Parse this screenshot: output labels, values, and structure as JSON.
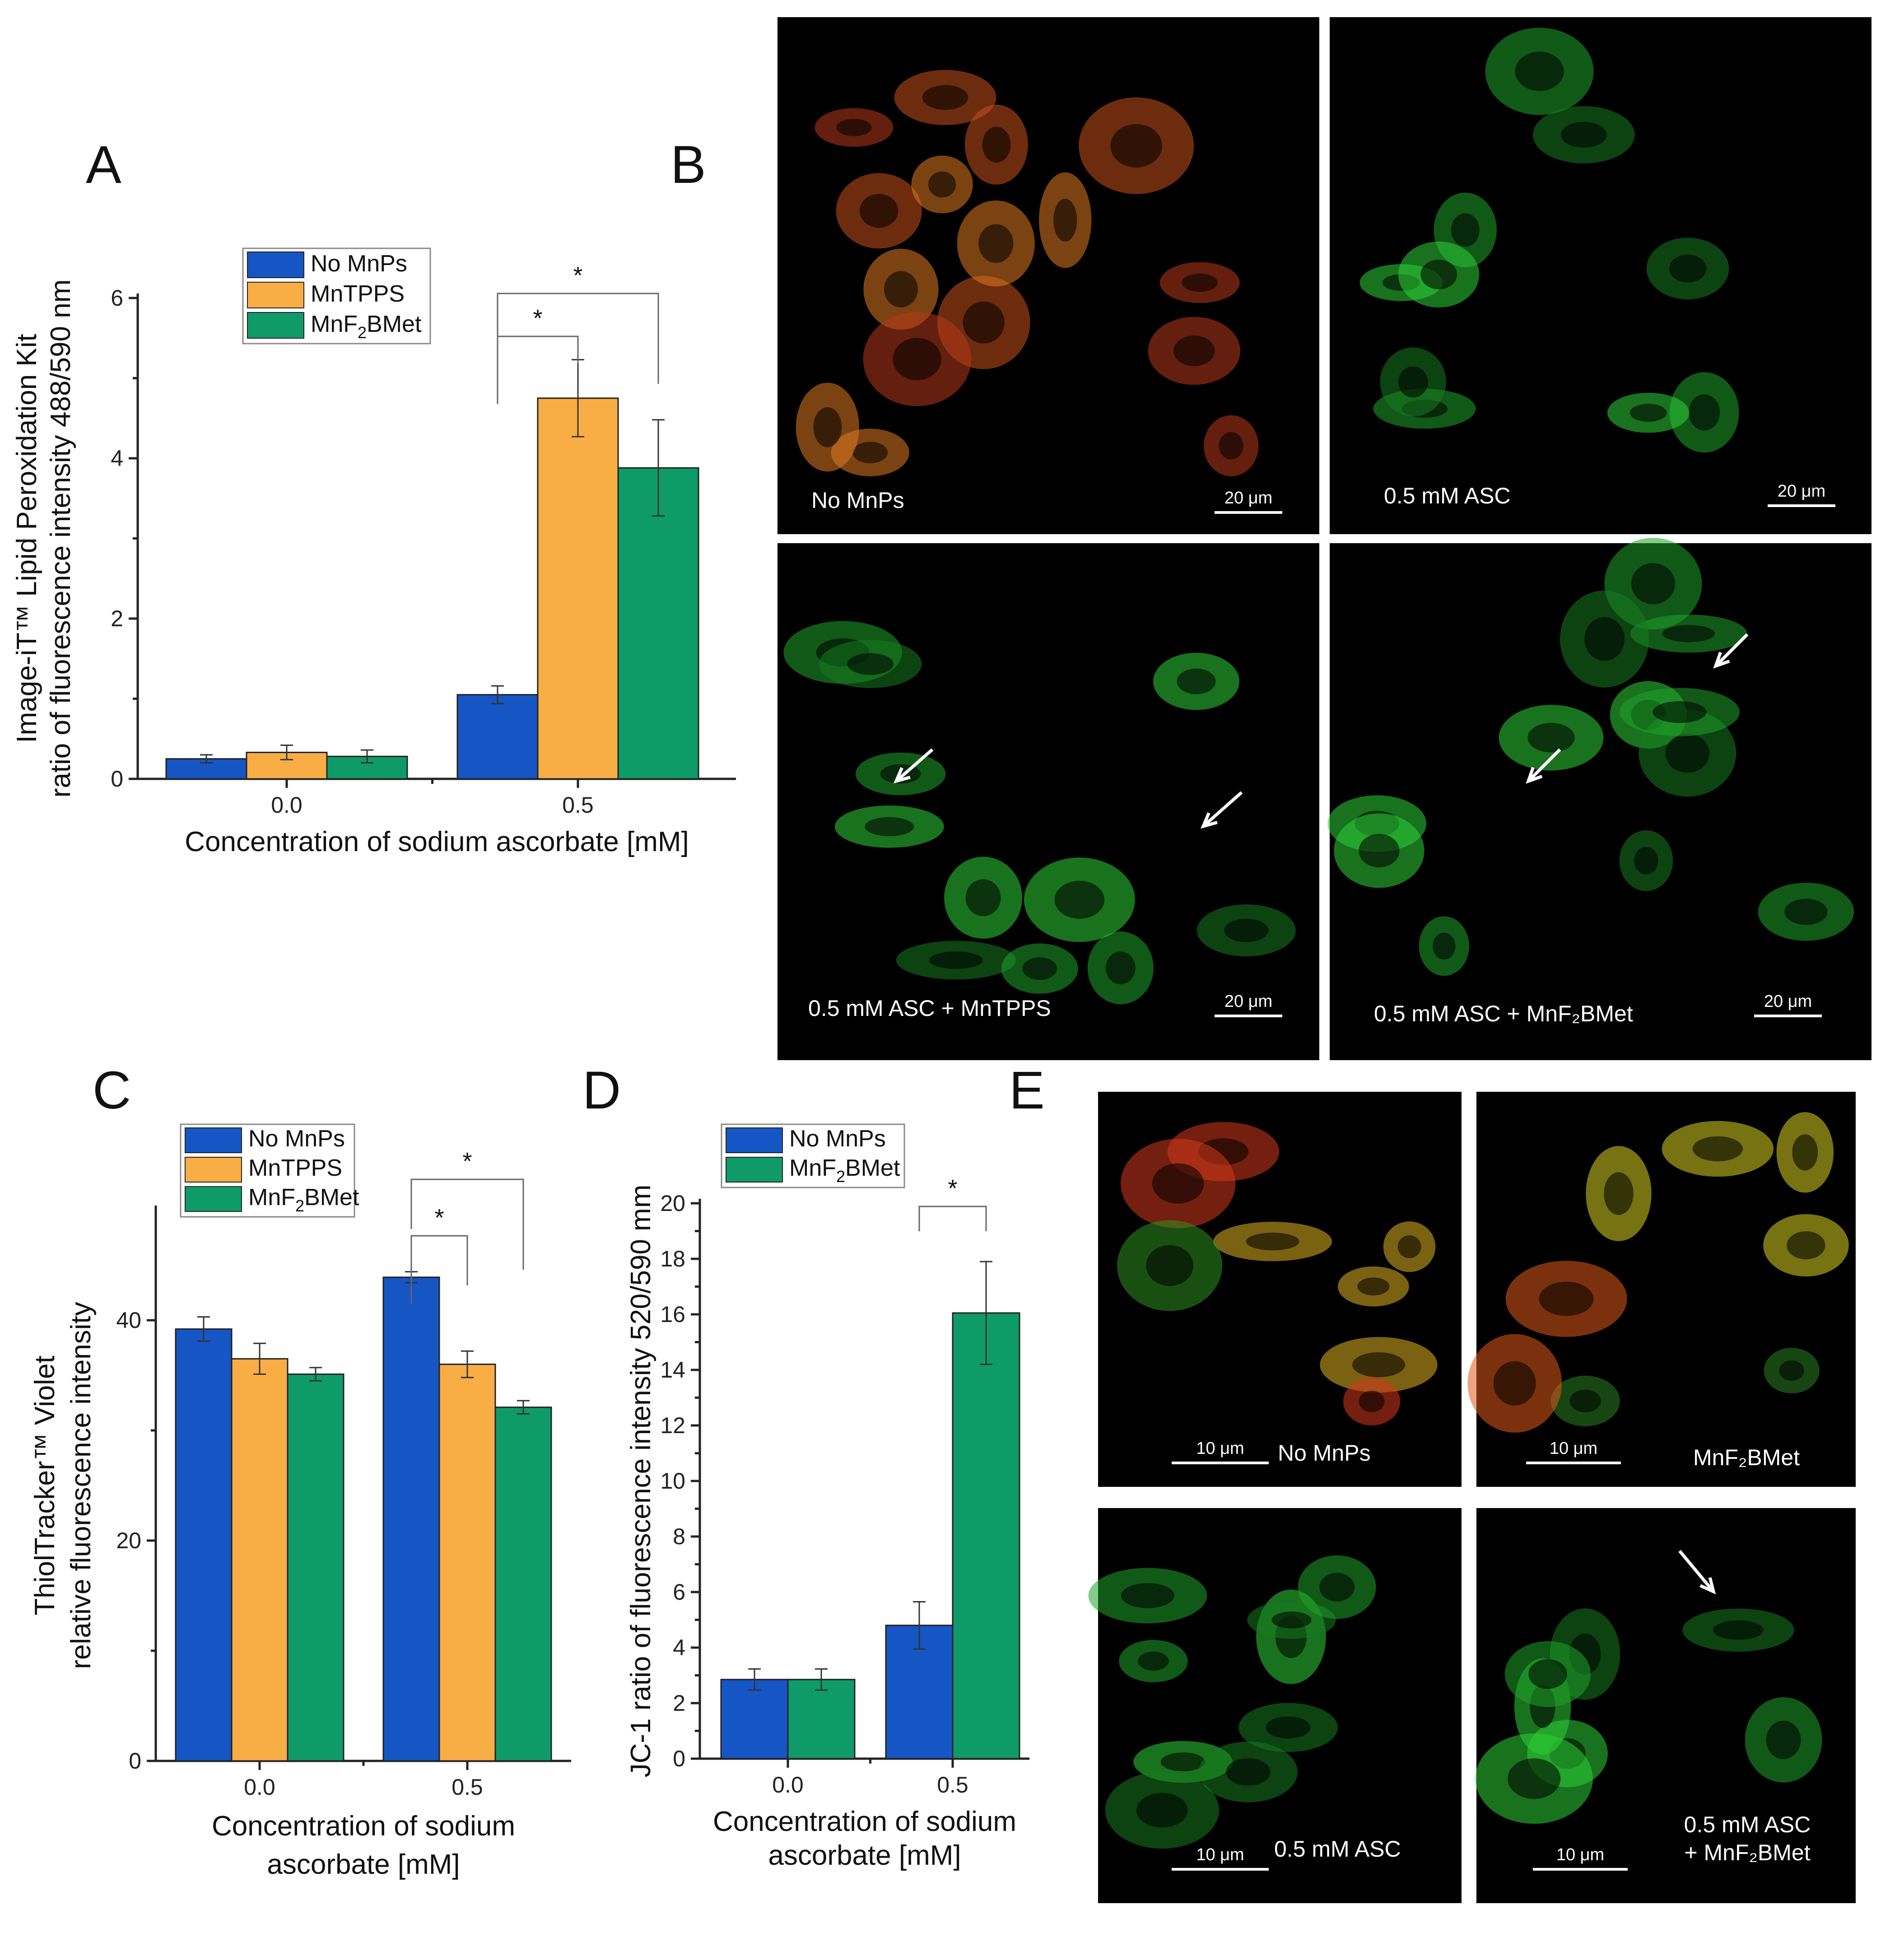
{
  "colors": {
    "blue": "#1655c4",
    "orange": "#f9ae45",
    "green": "#0f9a6a",
    "image_bg": "#000000"
  },
  "panel_letters": [
    "A",
    "B",
    "C",
    "D",
    "E"
  ],
  "chart_data": [
    {
      "id": "A",
      "type": "bar",
      "ylabel_lines": [
        "Image-iT™ Lipid Peroxidation Kit",
        "ratio of fluorescence intensity 488/590 nm"
      ],
      "xlabel_lines": [
        "Concentration of sodium ascorbate [mM]"
      ],
      "categories": [
        "0.0",
        "0.5"
      ],
      "ylim": [
        0,
        6
      ],
      "yticks": [
        0,
        2,
        4,
        6
      ],
      "series": [
        {
          "name": "No MnPs",
          "color": "#1655c4",
          "values": [
            0.25,
            1.05
          ],
          "errors": [
            0.05,
            0.11
          ]
        },
        {
          "name": "MnTPPS",
          "color": "#f9ae45",
          "values": [
            0.33,
            4.75
          ],
          "errors": [
            0.09,
            0.48
          ]
        },
        {
          "name": "MnF₂BMet",
          "color": "#0f9a6a",
          "values": [
            0.28,
            3.88
          ],
          "errors": [
            0.08,
            0.6
          ]
        }
      ],
      "significance": [
        {
          "group": 1,
          "from": 0,
          "to": 1,
          "label": "*"
        },
        {
          "group": 1,
          "from": 0,
          "to": 2,
          "label": "*"
        }
      ]
    },
    {
      "id": "C",
      "type": "bar",
      "ylabel_lines": [
        "ThiolTracker™ Violet",
        "relative fluorescence intensity"
      ],
      "xlabel_lines": [
        "Concentration of sodium",
        "ascorbate [mM]"
      ],
      "categories": [
        "0.0",
        "0.5"
      ],
      "ylim": [
        0,
        50
      ],
      "yticks": [
        0,
        20,
        40
      ],
      "series": [
        {
          "name": "No MnPs",
          "color": "#1655c4",
          "values": [
            39.2,
            43.9
          ],
          "errors": [
            1.1,
            0.5
          ]
        },
        {
          "name": "MnTPPS",
          "color": "#f9ae45",
          "values": [
            36.5,
            36.0
          ],
          "errors": [
            1.4,
            1.2
          ]
        },
        {
          "name": "MnF₂BMet",
          "color": "#0f9a6a",
          "values": [
            35.1,
            32.1
          ],
          "errors": [
            0.6,
            0.6
          ]
        }
      ],
      "significance": [
        {
          "group": 1,
          "from": 0,
          "to": 1,
          "label": "*"
        },
        {
          "group": 1,
          "from": 0,
          "to": 2,
          "label": "*"
        }
      ]
    },
    {
      "id": "D",
      "type": "bar",
      "ylabel_lines": [
        "JC-1 ratio of fluorescence intensity 520/590 mm"
      ],
      "xlabel_lines": [
        "Concentration of sodium",
        "ascorbate [mM]"
      ],
      "categories": [
        "0.0",
        "0.5"
      ],
      "ylim": [
        0,
        20
      ],
      "yticks": [
        0,
        2,
        4,
        6,
        8,
        10,
        12,
        14,
        16,
        18,
        20
      ],
      "series": [
        {
          "name": "No MnPs",
          "color": "#1655c4",
          "values": [
            2.85,
            4.8
          ],
          "errors": [
            0.38,
            0.85
          ]
        },
        {
          "name": "MnF₂BMet",
          "color": "#0f9a6a",
          "values": [
            2.85,
            16.05
          ],
          "errors": [
            0.38,
            1.85
          ]
        }
      ],
      "significance": [
        {
          "group": 1,
          "from": 0,
          "to": 1,
          "label": "*"
        }
      ]
    }
  ],
  "images_B": [
    {
      "label": "No MnPs",
      "scale": "20 μm",
      "tone": "red-orange"
    },
    {
      "label": "0.5 mM ASC",
      "scale": "20 μm",
      "tone": "green"
    },
    {
      "label": "0.5 mM ASC + MnTPPS",
      "scale": "20 μm",
      "tone": "green"
    },
    {
      "label": "0.5 mM ASC + MnF₂BMet",
      "scale": "20 μm",
      "tone": "green"
    }
  ],
  "images_E": [
    {
      "label_lines": [
        "No MnPs"
      ],
      "scale": "10 μm",
      "tone": "red-green"
    },
    {
      "label_lines": [
        "MnF₂BMet"
      ],
      "scale": "10 μm",
      "tone": "yellow-green"
    },
    {
      "label_lines": [
        "0.5 mM ASC"
      ],
      "scale": "10 μm",
      "tone": "green"
    },
    {
      "label_lines": [
        "0.5 mM ASC",
        "+ MnF₂BMet"
      ],
      "scale": "10 μm",
      "tone": "green"
    }
  ]
}
